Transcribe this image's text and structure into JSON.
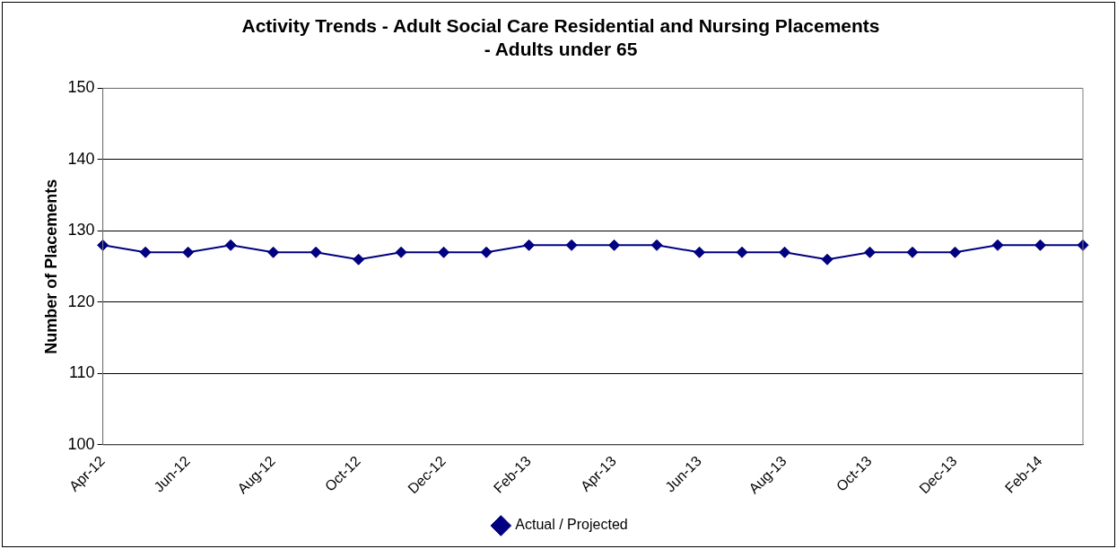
{
  "chart_data": {
    "type": "line",
    "title": "Activity Trends - Adult Social Care Residential and Nursing Placements - Adults under 65",
    "ylabel": "Number of Placements",
    "categories": [
      "Apr-12",
      null,
      "Jun-12",
      null,
      "Aug-12",
      null,
      "Oct-12",
      null,
      "Dec-12",
      null,
      "Feb-13",
      null,
      "Apr-13",
      null,
      "Jun-13",
      null,
      "Aug-13",
      null,
      "Oct-13",
      null,
      "Dec-13",
      null,
      "Feb-14",
      null
    ],
    "series": [
      {
        "name": "Actual / Projected",
        "color": "#000080",
        "values": [
          128,
          127,
          127,
          128,
          127,
          127,
          126,
          127,
          127,
          127,
          128,
          128,
          128,
          128,
          127,
          127,
          127,
          126,
          127,
          127,
          127,
          128,
          128,
          128
        ]
      }
    ],
    "ylim": [
      100,
      150
    ],
    "yticks": [
      100,
      110,
      120,
      130,
      140,
      150
    ],
    "grid": "y",
    "legend": "bottom",
    "marker": "diamond",
    "line_style": "solid"
  }
}
